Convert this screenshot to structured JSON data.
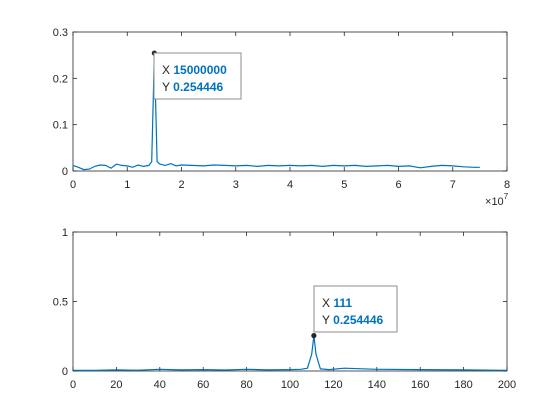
{
  "chart_data": [
    {
      "type": "line",
      "title": "",
      "xlabel": "",
      "ylabel": "",
      "xlim": [
        0,
        8
      ],
      "ylim": [
        0,
        0.3
      ],
      "x_exponent_label": "10",
      "x_exponent_power": "7",
      "xticks": [
        0,
        1,
        2,
        3,
        4,
        5,
        6,
        7,
        8
      ],
      "xtick_labels": [
        "0",
        "1",
        "2",
        "3",
        "4",
        "5",
        "6",
        "7",
        "8"
      ],
      "yticks": [
        0,
        0.1,
        0.2,
        0.3
      ],
      "ytick_labels": [
        "0",
        "0.1",
        "0.2",
        "0.3"
      ],
      "series_color": "#0072bd",
      "series": [
        {
          "x": [
            0,
            0.1,
            0.2,
            0.3,
            0.4,
            0.5,
            0.6,
            0.7,
            0.8,
            0.9,
            1.0,
            1.1,
            1.2,
            1.3,
            1.4,
            1.45,
            1.5,
            1.55,
            1.6,
            1.7,
            1.8,
            1.9,
            2.0,
            2.2,
            2.4,
            2.6,
            2.8,
            3.0,
            3.2,
            3.4,
            3.6,
            3.8,
            4.0,
            4.2,
            4.4,
            4.6,
            4.8,
            5.0,
            5.2,
            5.4,
            5.6,
            5.8,
            6.0,
            6.2,
            6.4,
            6.6,
            6.8,
            7.0,
            7.2,
            7.4,
            7.5
          ],
          "y": [
            0.012,
            0.008,
            0.003,
            0.004,
            0.01,
            0.013,
            0.012,
            0.006,
            0.015,
            0.012,
            0.011,
            0.008,
            0.013,
            0.01,
            0.012,
            0.02,
            0.254446,
            0.02,
            0.015,
            0.012,
            0.016,
            0.011,
            0.013,
            0.012,
            0.011,
            0.013,
            0.012,
            0.011,
            0.012,
            0.01,
            0.012,
            0.011,
            0.012,
            0.011,
            0.012,
            0.01,
            0.012,
            0.011,
            0.012,
            0.01,
            0.011,
            0.012,
            0.01,
            0.011,
            0.007,
            0.01,
            0.012,
            0.011,
            0.009,
            0.008,
            0.008
          ]
        }
      ],
      "datatip": {
        "x_label": "X",
        "x_value": "15000000",
        "y_label": "Y",
        "y_value": "0.254446",
        "point_x": 1.5,
        "point_y": 0.254446
      }
    },
    {
      "type": "line",
      "title": "",
      "xlabel": "",
      "ylabel": "",
      "xlim": [
        0,
        200
      ],
      "ylim": [
        0,
        1
      ],
      "xticks": [
        0,
        20,
        40,
        60,
        80,
        100,
        120,
        140,
        160,
        180,
        200
      ],
      "xtick_labels": [
        "0",
        "20",
        "40",
        "60",
        "80",
        "100",
        "120",
        "140",
        "160",
        "180",
        "200"
      ],
      "yticks": [
        0,
        0.5,
        1
      ],
      "ytick_labels": [
        "0",
        "0.5",
        "1"
      ],
      "series_color": "#0072bd",
      "series": [
        {
          "x": [
            0,
            10,
            20,
            30,
            40,
            50,
            60,
            70,
            80,
            90,
            100,
            105,
            108,
            110,
            111,
            112,
            114,
            118,
            125,
            140,
            160,
            180,
            200
          ],
          "y": [
            0.005,
            0.004,
            0.008,
            0.006,
            0.012,
            0.008,
            0.01,
            0.007,
            0.012,
            0.008,
            0.01,
            0.012,
            0.02,
            0.12,
            0.254446,
            0.12,
            0.015,
            0.01,
            0.02,
            0.012,
            0.01,
            0.008,
            0.005
          ]
        }
      ],
      "datatip": {
        "x_label": "X",
        "x_value": "111",
        "y_label": "Y",
        "y_value": "0.254446",
        "point_x": 111,
        "point_y": 0.254446
      }
    }
  ]
}
